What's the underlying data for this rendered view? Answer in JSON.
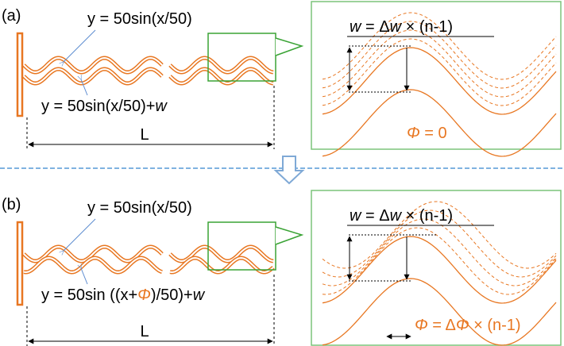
{
  "panels": [
    {
      "label": "(a)",
      "eq_top": "y = 50sin(x/50)",
      "eq_bottom": [
        "y = 50sin(x/50)+",
        "w"
      ],
      "length_label": "L",
      "zoom_w": [
        "w",
        " = Δ",
        "w",
        " × (n-1)"
      ],
      "zoom_phi": [
        "Φ",
        " = 0"
      ]
    },
    {
      "label": "(b)",
      "eq_top": "y = 50sin(x/50)",
      "eq_bottom": [
        "y = 50sin ((x+",
        "Φ",
        ")/50)+",
        "w"
      ],
      "length_label": "L",
      "zoom_w": [
        "w",
        " = Δ",
        "w",
        " × (n-1)"
      ],
      "zoom_phi": [
        "Φ",
        " = Δ",
        "Φ",
        " × (n-1)"
      ]
    }
  ]
}
